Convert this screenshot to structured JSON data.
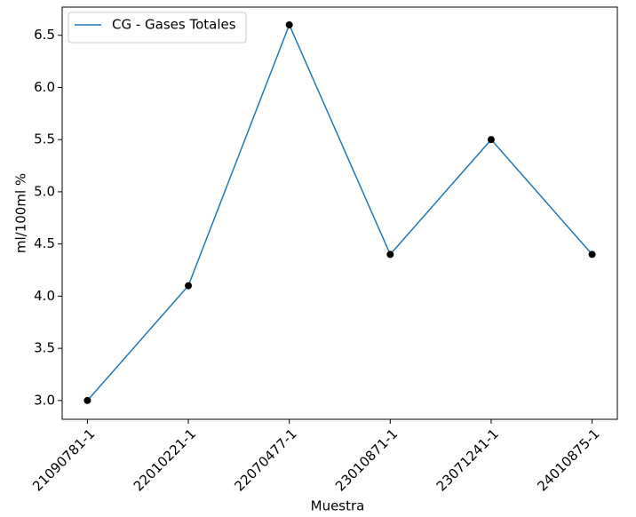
{
  "chart_data": {
    "type": "line",
    "x_label": "Muestra",
    "y_label": "ml/100ml %",
    "categories": [
      "21090781-1",
      "22010221-1",
      "22070477-1",
      "23010871-1",
      "23071241-1",
      "24010875-1"
    ],
    "series": [
      {
        "name": "CG - Gases Totales",
        "color": "#1f77b4",
        "marker_color": "#000000",
        "values": [
          3.0,
          4.1,
          6.6,
          4.4,
          5.5,
          4.4
        ]
      }
    ],
    "ylim": [
      2.82,
      6.77
    ],
    "yticks": [
      {
        "value": 3,
        "label": "3.0"
      },
      3.5,
      {
        "value": 4,
        "label": "4.0"
      },
      4.5,
      {
        "value": 5,
        "label": "5.0"
      },
      5.5,
      {
        "value": 6,
        "label": "6.0"
      },
      6.5
    ],
    "legend": "upper left"
  }
}
